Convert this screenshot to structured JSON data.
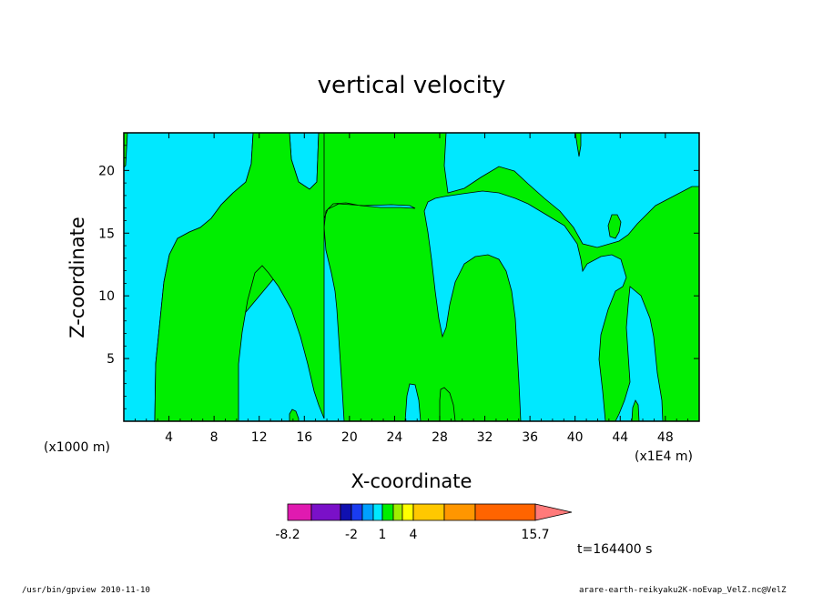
{
  "chart_data": {
    "type": "heatmap",
    "title": "vertical velocity",
    "xlabel": "X-coordinate",
    "ylabel": "Z-coordinate",
    "xlim": [
      0,
      51
    ],
    "ylim": [
      0,
      23
    ],
    "x_ticks": [
      "4",
      "8",
      "12",
      "16",
      "20",
      "24",
      "28",
      "32",
      "36",
      "40",
      "44",
      "48"
    ],
    "y_ticks": [
      "5",
      "10",
      "15",
      "20"
    ],
    "x_unit_left": "(x1000 m)",
    "x_unit_right": "(x1E4 m)",
    "fill_colors": {
      "background": "#00e8ff",
      "positive": "#00ee00"
    },
    "colorbar": {
      "colors": [
        "#e01ab0",
        "#7a10c8",
        "#1010b0",
        "#1a3cf0",
        "#00a0ff",
        "#00e8ff",
        "#00ee00",
        "#a0ee00",
        "#ffff00",
        "#ffc800",
        "#ff9600",
        "#ff6400",
        "#ff1010",
        "#ff7a7a",
        "#ffb4b4"
      ],
      "labels": [
        "-8.2",
        "-2",
        "1",
        "4",
        "15.7"
      ]
    },
    "time_label": "t=164400 s"
  },
  "footer": {
    "left": "/usr/bin/gpview  2010-11-10",
    "right": "arare-earth-reikyaku2K-noEvap_VelZ.nc@VelZ"
  }
}
